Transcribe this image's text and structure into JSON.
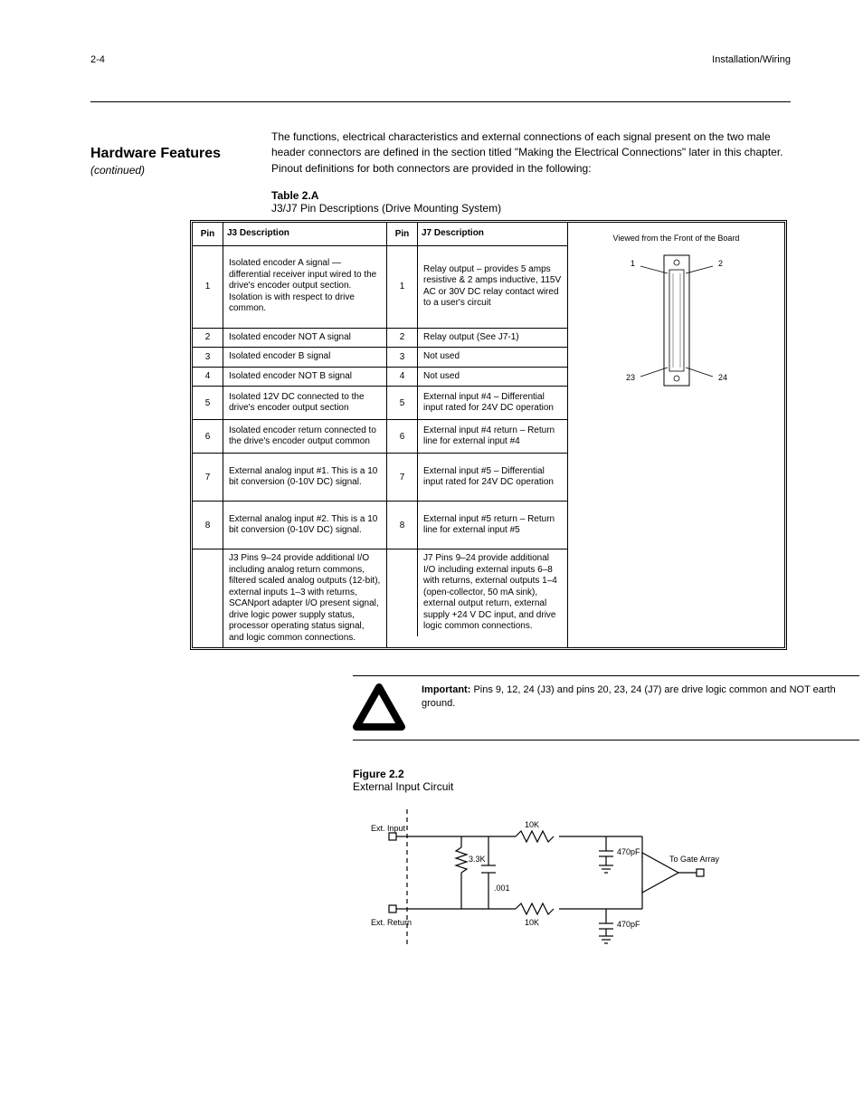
{
  "header": {
    "page_label": "2-4",
    "chapter_label": "Installation/Wiring"
  },
  "section": {
    "title": "Hardware Features",
    "subtitle_ital": "(continued)",
    "p1": "The functions, electrical characteristics and external connections of each signal present on the two male header connectors are defined in the section titled \"Making the Electrical Connections\" later in this chapter. Pinout definitions for both connectors are provided in the following:",
    "table_caption_pre": "Table 2.A",
    "table_caption": "J3/J7 Pin Descriptions (Drive Mounting System)"
  },
  "table": {
    "col_a_header_pin": "Pin",
    "col_b_header_pin": "Pin",
    "col_header_desc": "J3 Description",
    "col_header_desc_b": "J7 Description",
    "rows_a": [
      {
        "pin": "1",
        "desc": "Isolated encoder A signal — differential receiver input wired to the drive's encoder output section. Isolation is with respect to drive common.",
        "h": "tall"
      },
      {
        "pin": "2",
        "desc": "Isolated encoder NOT A signal",
        "h": "sml"
      },
      {
        "pin": "3",
        "desc": "Isolated encoder B signal",
        "h": "sml"
      },
      {
        "pin": "4",
        "desc": "Isolated encoder NOT B signal",
        "h": "sml"
      },
      {
        "pin": "5",
        "desc": "Isolated 12V DC connected to the drive's encoder output section",
        "h": "dbl"
      },
      {
        "pin": "6",
        "desc": "Isolated encoder return connected to the drive's encoder output common",
        "h": "dbl"
      },
      {
        "pin": "7",
        "desc": "External analog input #1. This is a 10 bit conversion (0-10V DC) signal.",
        "h": "med"
      },
      {
        "pin": "8",
        "desc": "External analog input #2. This is a 10 bit conversion (0-10V DC) signal.",
        "h": "med"
      }
    ],
    "rows_b": [
      {
        "pin": "1",
        "desc": "Relay output – provides 5 amps resistive & 2 amps inductive, 115V AC or 30V DC relay contact wired to a user's circuit",
        "h": "tall"
      },
      {
        "pin": "2",
        "desc": "Relay output (See J7-1)",
        "h": "sml"
      },
      {
        "pin": "3",
        "desc": "Not used",
        "h": "sml"
      },
      {
        "pin": "4",
        "desc": "Not used",
        "h": "sml"
      },
      {
        "pin": "5",
        "desc": "External input #4 – Differential input rated for 24V DC operation",
        "h": "dbl"
      },
      {
        "pin": "6",
        "desc": "External input #4 return – Return line for external input #4",
        "h": "dbl"
      },
      {
        "pin": "7",
        "desc": "External input #5 – Differential input rated for 24V DC operation",
        "h": "med"
      },
      {
        "pin": "8",
        "desc": "External input #5 return – Return line for external input #5",
        "h": "med"
      }
    ],
    "rows_a_tail": [
      {
        "pin": "",
        "desc": "J3 Pins 9–24 provide additional I/O including analog return commons, filtered scaled analog outputs (12-bit), external inputs 1–3 with returns, SCANport adapter I/O present signal, drive logic power supply status, processor operating status signal, and logic common connections.",
        "h": "med"
      }
    ],
    "rows_b_tail": [
      {
        "pin": "",
        "desc": "J7 Pins 9–24 provide additional I/O including external inputs 6–8 with returns, external outputs 1–4 (open-collector, 50 mA sink), external output return, external supply +24 V DC input, and drive logic common connections.",
        "h": "med"
      }
    ],
    "connector_note": "Viewed from the Front of the Board",
    "conn_labels": {
      "tl": "1",
      "tr": "2",
      "bl": "23",
      "br": "24"
    }
  },
  "important": {
    "label": "Important:",
    "text": "Pins 9, 12, 24 (J3) and pins 20, 23, 24 (J7) are drive logic common and NOT earth ground."
  },
  "figure": {
    "caption_pre": "Figure 2.2",
    "caption": "External Input Circuit",
    "labels": {
      "in1": "Ext. Input",
      "in2": "Ext. Return",
      "node": "To Gate Array",
      "r_top": "10K",
      "r_mid": "3.3K",
      "r_bot": "10K",
      "c_mid": ".001",
      "c_top": "470pF",
      "c_bot": "470pF"
    }
  },
  "colors": {
    "rule": "#000000",
    "bg": "#ffffff",
    "text": "#000000"
  }
}
